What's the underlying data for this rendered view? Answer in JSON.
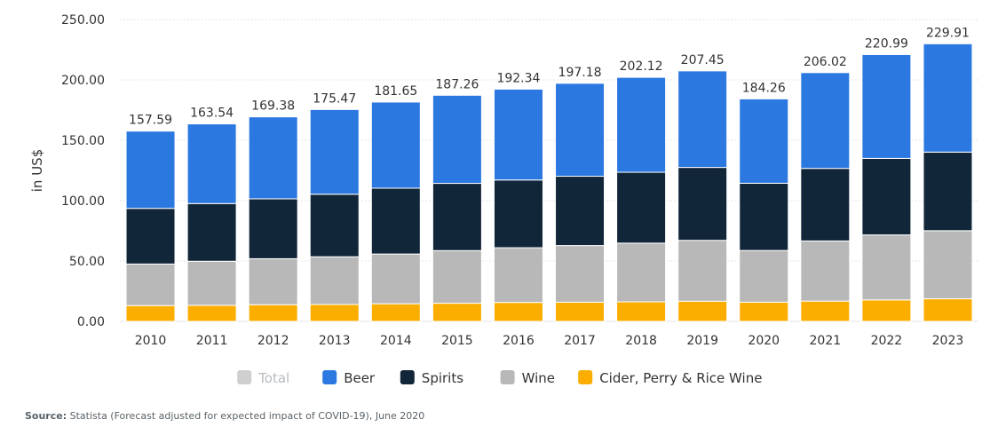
{
  "chart_data": {
    "type": "bar",
    "stacked": true,
    "title": "",
    "xlabel": "",
    "ylabel": "in US$",
    "ylim": [
      0,
      250
    ],
    "y_ticks": [
      "0.00",
      "50.00",
      "100.00",
      "150.00",
      "200.00",
      "250.00"
    ],
    "grid": true,
    "categories": [
      "2010",
      "2011",
      "2012",
      "2013",
      "2014",
      "2015",
      "2016",
      "2017",
      "2018",
      "2019",
      "2020",
      "2021",
      "2022",
      "2023"
    ],
    "series": [
      {
        "name": "Cider, Perry & Rice Wine",
        "color": "#fbae00",
        "values": [
          13.1,
          13.3,
          13.8,
          14.0,
          14.6,
          15.0,
          15.7,
          15.9,
          16.2,
          16.7,
          15.9,
          16.8,
          17.8,
          18.7
        ]
      },
      {
        "name": "Wine",
        "color": "#b8b8b8",
        "values": [
          34.4,
          36.5,
          38.1,
          39.5,
          41.2,
          43.6,
          45.3,
          46.9,
          48.6,
          50.4,
          42.8,
          49.8,
          53.8,
          56.4
        ]
      },
      {
        "name": "Spirits",
        "color": "#12263a",
        "values": [
          46.1,
          47.8,
          49.6,
          51.8,
          54.5,
          55.7,
          56.1,
          57.4,
          58.7,
          60.4,
          55.7,
          60.1,
          63.4,
          65.1
        ]
      },
      {
        "name": "Beer",
        "color": "#2b78e0",
        "values": [
          63.99,
          65.94,
          67.88,
          70.17,
          71.35,
          72.96,
          75.24,
          76.98,
          78.62,
          79.95,
          69.86,
          79.32,
          85.99,
          89.71
        ]
      }
    ],
    "totals": [
      "157.59",
      "163.54",
      "169.38",
      "175.47",
      "181.65",
      "187.26",
      "192.34",
      "197.18",
      "202.12",
      "207.45",
      "184.26",
      "206.02",
      "220.99",
      "229.91"
    ],
    "legend": {
      "position": "bottom",
      "items": [
        {
          "name": "Total",
          "color": "#cfcfcf",
          "text_color": "#b8bcc0"
        },
        {
          "name": "Beer",
          "color": "#2b78e0",
          "text_color": "#333333"
        },
        {
          "name": "Spirits",
          "color": "#12263a",
          "text_color": "#333333"
        },
        {
          "name": "Wine",
          "color": "#b8b8b8",
          "text_color": "#333333"
        },
        {
          "name": "Cider, Perry & Rice Wine",
          "color": "#fbae00",
          "text_color": "#333333"
        }
      ]
    }
  },
  "source": {
    "label": "Source:",
    "text": " Statista (Forecast adjusted for expected impact of COVID-19), June 2020"
  }
}
